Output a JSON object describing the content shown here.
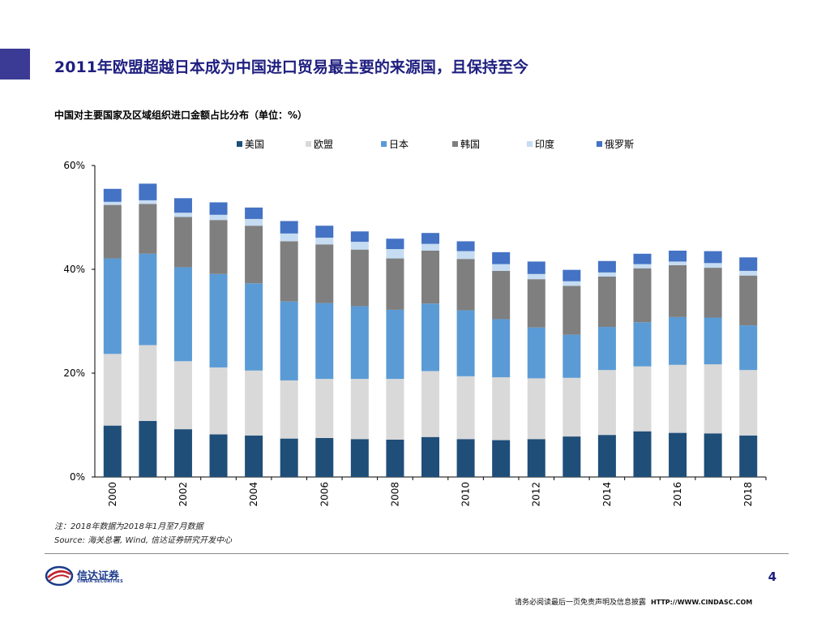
{
  "slide": {
    "title": "2011年欧盟超越日本成为中国进口贸易最主要的来源国，且保持至今",
    "page_number": "4"
  },
  "footer": {
    "note": "注：2018年数据为2018年1月至7月数据",
    "source": "Source: 海关总署, Wind, 信达证券研究开发中心",
    "disclaimer": "请务必阅读最后一页免责声明及信息披露",
    "website": "HTTP://WWW.CINDASC.COM",
    "brand_name": "信达证券",
    "brand_name_en": "CINDA SECURITIES"
  },
  "chart_data": {
    "type": "bar",
    "stacked": true,
    "title": "中国对主要国家及区域组织进口金额占比分布（单位：%）",
    "xlabel": "",
    "ylabel": "",
    "ylim": [
      0,
      60
    ],
    "yticks": [
      0,
      20,
      40,
      60
    ],
    "ytick_labels": [
      "0%",
      "20%",
      "40%",
      "60%"
    ],
    "legend_position": "top",
    "categories": [
      "2000",
      "2001",
      "2002",
      "2003",
      "2004",
      "2005",
      "2006",
      "2007",
      "2008",
      "2009",
      "2010",
      "2011",
      "2012",
      "2013",
      "2014",
      "2015",
      "2016",
      "2017",
      "2018"
    ],
    "xtick_labels": [
      "2000",
      "",
      "2002",
      "",
      "2004",
      "",
      "2006",
      "",
      "2008",
      "",
      "2010",
      "",
      "2012",
      "",
      "2014",
      "",
      "2016",
      "",
      "2018"
    ],
    "series": [
      {
        "name": "美国",
        "color": "#1f4e79",
        "values": [
          9.9,
          10.8,
          9.2,
          8.2,
          8.0,
          7.4,
          7.5,
          7.3,
          7.2,
          7.7,
          7.3,
          7.1,
          7.3,
          7.8,
          8.1,
          8.8,
          8.5,
          8.4,
          8.0
        ]
      },
      {
        "name": "欧盟",
        "color": "#d9d9d9",
        "values": [
          13.8,
          14.6,
          13.1,
          12.9,
          12.5,
          11.2,
          11.4,
          11.6,
          11.7,
          12.7,
          12.1,
          12.1,
          11.7,
          11.3,
          12.5,
          12.5,
          13.1,
          13.3,
          12.6
        ]
      },
      {
        "name": "日本",
        "color": "#5b9bd5",
        "values": [
          18.4,
          17.6,
          18.1,
          18.0,
          16.8,
          15.2,
          14.6,
          14.0,
          13.3,
          13.0,
          12.7,
          11.2,
          9.8,
          8.3,
          8.3,
          8.5,
          9.2,
          9.0,
          8.6
        ]
      },
      {
        "name": "韩国",
        "color": "#7f7f7f",
        "values": [
          10.3,
          9.6,
          9.7,
          10.4,
          11.1,
          11.6,
          11.3,
          10.9,
          9.9,
          10.2,
          9.9,
          9.3,
          9.3,
          9.4,
          9.7,
          10.4,
          10.0,
          9.6,
          9.6
        ]
      },
      {
        "name": "印度",
        "color": "#c5dcf2",
        "values": [
          0.6,
          0.7,
          0.8,
          1.0,
          1.3,
          1.5,
          1.3,
          1.5,
          1.8,
          1.3,
          1.5,
          1.3,
          1.0,
          0.9,
          0.8,
          0.8,
          0.7,
          0.9,
          0.9
        ]
      },
      {
        "name": "俄罗斯",
        "color": "#4472c4",
        "values": [
          2.5,
          3.2,
          2.8,
          2.4,
          2.2,
          2.4,
          2.3,
          2.0,
          2.0,
          2.1,
          1.9,
          2.3,
          2.4,
          2.2,
          2.2,
          2.0,
          2.1,
          2.3,
          2.6
        ]
      }
    ]
  }
}
